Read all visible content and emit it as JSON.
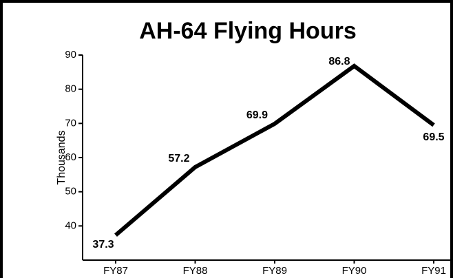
{
  "chart_data": {
    "type": "line",
    "title": "AH-64 Flying Hours",
    "y_label": "Thousands",
    "categories": [
      "FY87",
      "FY88",
      "FY89",
      "FY90",
      "FY91"
    ],
    "series": [
      {
        "name": "Flying Hours",
        "color": "#000000",
        "values": [
          37.3,
          57.2,
          69.9,
          86.8,
          69.5
        ]
      }
    ],
    "ylim": [
      30,
      90
    ],
    "yticks": [
      40,
      50,
      60,
      70,
      80,
      90
    ]
  }
}
